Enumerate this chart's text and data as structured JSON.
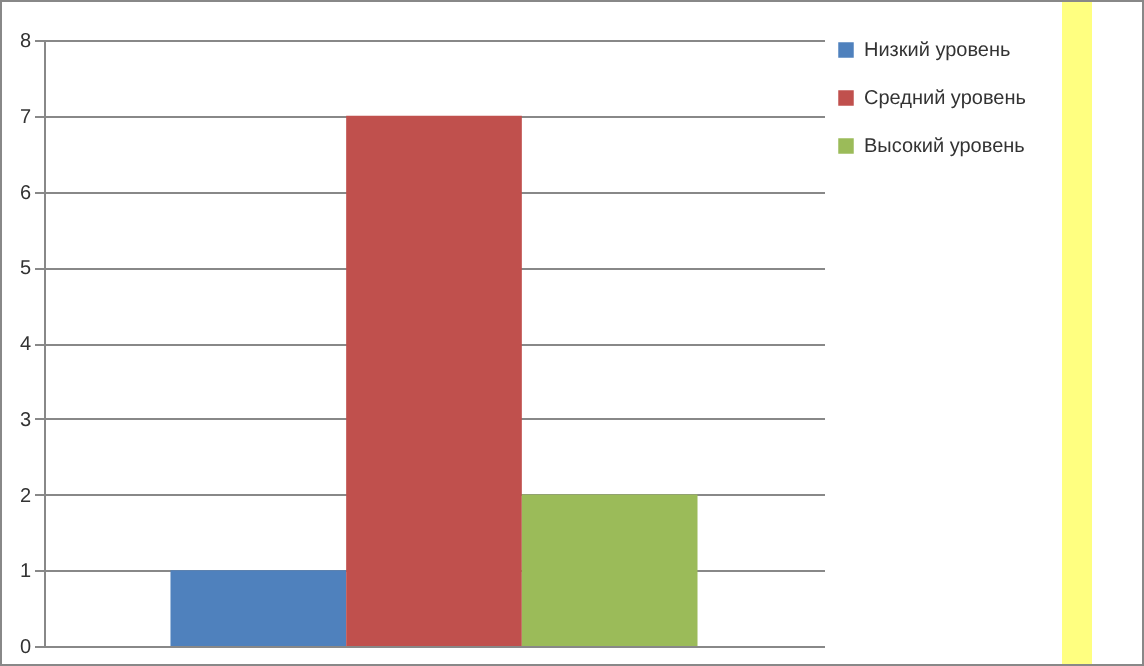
{
  "chart_data": {
    "type": "bar",
    "categories": [
      null
    ],
    "series": [
      {
        "name": "Низкий уровень",
        "color": "#4f81bd",
        "values": [
          1
        ]
      },
      {
        "name": "Средний уровень",
        "color": "#c0504d",
        "values": [
          7
        ]
      },
      {
        "name": "Высокий уровень",
        "color": "#9bbb59",
        "values": [
          2
        ]
      }
    ],
    "ylim": [
      0,
      8
    ],
    "yticks": [
      0,
      1,
      2,
      3,
      4,
      5,
      6,
      7,
      8
    ],
    "grid": "y",
    "legend": "right"
  }
}
